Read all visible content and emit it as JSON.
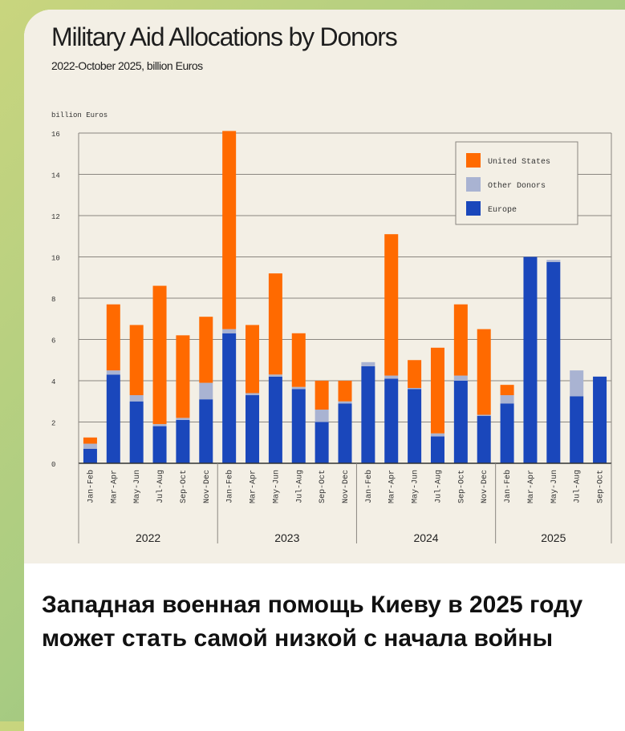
{
  "caption": "Западная военная помощь Киеву в 2025 году может стать самой низкой с начала войны",
  "chart_data": {
    "type": "bar",
    "stacked": true,
    "title": "Military Aid Allocations by Donors",
    "subtitle": "2022-October 2025, billion Euros",
    "ylabel": "billion Euros",
    "xlabel": "",
    "ylim": [
      0,
      16
    ],
    "yticks": [
      "0",
      "2",
      "4",
      "6",
      "8",
      "10",
      "12",
      "14",
      "16"
    ],
    "grid": true,
    "legend_position": "top-right",
    "groups": [
      {
        "label": "2022",
        "categories": [
          "Jan-Feb",
          "Mar-Apr",
          "May-Jun",
          "Jul-Aug",
          "Sep-Oct",
          "Nov-Dec"
        ]
      },
      {
        "label": "2023",
        "categories": [
          "Jan-Feb",
          "Mar-Apr",
          "May-Jun",
          "Jul-Aug",
          "Sep-Oct",
          "Nov-Dec"
        ]
      },
      {
        "label": "2024",
        "categories": [
          "Jan-Feb",
          "Mar-Apr",
          "May-Jun",
          "Jul-Aug",
          "Sep-Oct",
          "Nov-Dec"
        ]
      },
      {
        "label": "2025",
        "categories": [
          "Jan-Feb",
          "Mar-Apr",
          "May-Jun",
          "Jul-Aug",
          "Sep-Oct"
        ]
      }
    ],
    "series": [
      {
        "name": "Europe",
        "color": "#1a47bb",
        "values": [
          0.7,
          4.3,
          3.0,
          1.8,
          2.1,
          3.1,
          6.3,
          3.3,
          4.2,
          3.6,
          2.0,
          2.9,
          4.7,
          4.1,
          3.6,
          1.3,
          4.0,
          2.3,
          2.9,
          10.0,
          9.75,
          3.25,
          4.2
        ]
      },
      {
        "name": "Other Donors",
        "color": "#a9b3d2",
        "values": [
          0.25,
          0.2,
          0.3,
          0.1,
          0.1,
          0.8,
          0.2,
          0.1,
          0.1,
          0.1,
          0.6,
          0.1,
          0.2,
          0.15,
          0.05,
          0.15,
          0.25,
          0.05,
          0.4,
          0.0,
          0.1,
          1.25,
          0.0
        ]
      },
      {
        "name": "United States",
        "color": "#ff6a00",
        "values": [
          0.3,
          3.2,
          3.4,
          6.7,
          4.0,
          3.2,
          9.6,
          3.3,
          4.9,
          2.6,
          1.4,
          1.0,
          0.0,
          6.85,
          1.35,
          4.15,
          3.45,
          4.15,
          0.5,
          0.0,
          0.0,
          0.0,
          0.0
        ]
      }
    ],
    "legend_order": [
      "United States",
      "Other Donors",
      "Europe"
    ]
  }
}
